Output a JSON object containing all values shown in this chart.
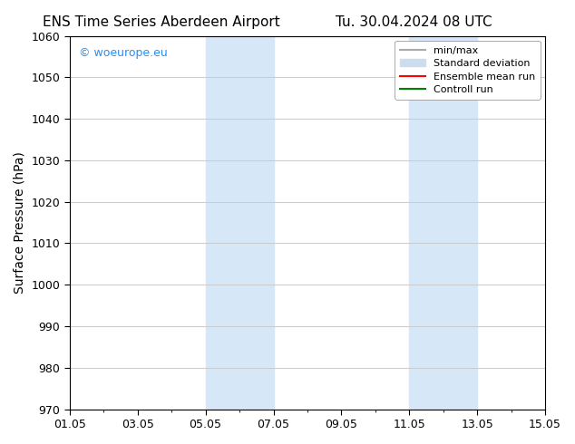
{
  "title": "ENS Time Series Aberdeen Airport",
  "title2": "Tu. 30.04.2024 08 UTC",
  "ylabel": "Surface Pressure (hPa)",
  "ylim": [
    970,
    1060
  ],
  "yticks": [
    970,
    980,
    990,
    1000,
    1010,
    1020,
    1030,
    1040,
    1050,
    1060
  ],
  "xlim_start": "2024-05-01",
  "xlim_end": "2024-05-16",
  "xtick_labels": [
    "01.05",
    "03.05",
    "05.05",
    "07.05",
    "09.05",
    "11.05",
    "13.05",
    "15.05"
  ],
  "xtick_positions": [
    0,
    2,
    4,
    6,
    8,
    10,
    12,
    14
  ],
  "shaded_bands": [
    {
      "x_start": 4,
      "x_end": 6,
      "color": "#d6e8f7"
    },
    {
      "x_start": 10,
      "x_end": 12,
      "color": "#d6e8f7"
    }
  ],
  "watermark_text": "© woeurope.eu",
  "watermark_color": "#1e90ff",
  "legend_items": [
    {
      "label": "min/max",
      "color": "#aaaaaa",
      "linestyle": "-",
      "linewidth": 1.5
    },
    {
      "label": "Standard deviation",
      "color": "#ccddee",
      "linestyle": "-",
      "linewidth": 6
    },
    {
      "label": "Ensemble mean run",
      "color": "#ff0000",
      "linestyle": "-",
      "linewidth": 1.5
    },
    {
      "label": "Controll run",
      "color": "#008000",
      "linestyle": "-",
      "linewidth": 1.5
    }
  ],
  "bg_color": "#ffffff",
  "grid_color": "#cccccc",
  "tick_color": "#000000",
  "font_family": "DejaVu Sans",
  "title_fontsize": 11,
  "axis_label_fontsize": 10
}
